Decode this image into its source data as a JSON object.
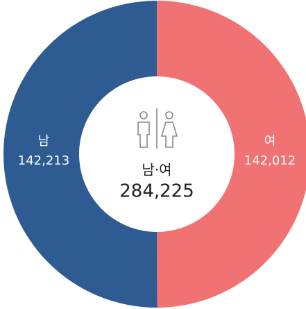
{
  "chart_data": {
    "type": "pie",
    "donut": true,
    "categories": [
      "남",
      "여"
    ],
    "values": [
      142213,
      142012
    ],
    "value_labels": [
      "142,213",
      "142,012"
    ],
    "colors": [
      "#2e5b91",
      "#f07272"
    ],
    "center_title": "남·여",
    "total": 284225,
    "total_label": "284,225"
  }
}
